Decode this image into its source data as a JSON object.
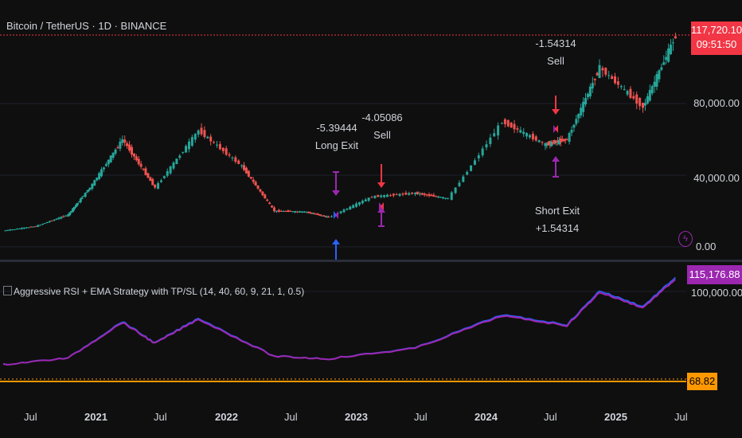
{
  "header": {
    "symbol_title": "Bitcoin / TetherUS · 1D · BINANCE"
  },
  "indicator": {
    "title": "Aggressive RSI + EMA Strategy with TP/SL (14, 40, 60, 9, 21, 1, 0.5)"
  },
  "price_axis": {
    "labels": [
      "80,000.00",
      "40,000.00",
      "0.00"
    ],
    "last_price": "117,720.10",
    "countdown": "09:51:50",
    "last_price_color": "#f23645"
  },
  "indicator_axis": {
    "labels": [
      "100,000.00"
    ],
    "equity_value": "115,176.88",
    "equity_color": "#9c27b0",
    "rsi_value": "68.82",
    "rsi_color": "#ff9800"
  },
  "time_axis": {
    "labels": [
      "Jul",
      "2021",
      "Jul",
      "2022",
      "Jul",
      "2023",
      "Jul",
      "2024",
      "Jul",
      "2025",
      "Jul"
    ]
  },
  "trade_markers": [
    {
      "text": "-1.54314",
      "action": "Sell",
      "color": "#f23645"
    },
    {
      "text": "-5.39444",
      "action": "Long Exit",
      "color": "#9c27b0"
    },
    {
      "text": "-4.05086",
      "action": "Sell",
      "color": "#f23645"
    },
    {
      "text": "Short Exit",
      "action": "+1.54314",
      "color": "#9c27b0"
    }
  ],
  "chart_data": {
    "type": "line",
    "price_series": {
      "x": [
        "2020-05",
        "2020-08",
        "2020-11",
        "2021-01",
        "2021-04",
        "2021-07",
        "2021-11",
        "2022-03",
        "2022-06",
        "2022-09",
        "2022-11",
        "2023-03",
        "2023-07",
        "2023-10",
        "2024-03",
        "2024-07",
        "2024-09",
        "2024-12",
        "2025-04",
        "2025-07"
      ],
      "y": [
        9000,
        11500,
        18000,
        33000,
        60000,
        33000,
        65000,
        45000,
        20000,
        19500,
        16500,
        28000,
        30000,
        27000,
        70000,
        57000,
        60000,
        100000,
        78000,
        117720
      ]
    },
    "equity_series": {
      "x": [
        "2020-05",
        "2020-11",
        "2021-04",
        "2021-07",
        "2021-11",
        "2022-06",
        "2022-11",
        "2023-07",
        "2024-03",
        "2024-09",
        "2024-12",
        "2025-04",
        "2025-07"
      ],
      "y": [
        10000,
        18000,
        62000,
        36000,
        66000,
        20000,
        17000,
        30000,
        70000,
        58000,
        99000,
        80000,
        115176.88
      ]
    },
    "rsi_value": 68.82,
    "ylim": [
      0,
      125000
    ]
  }
}
